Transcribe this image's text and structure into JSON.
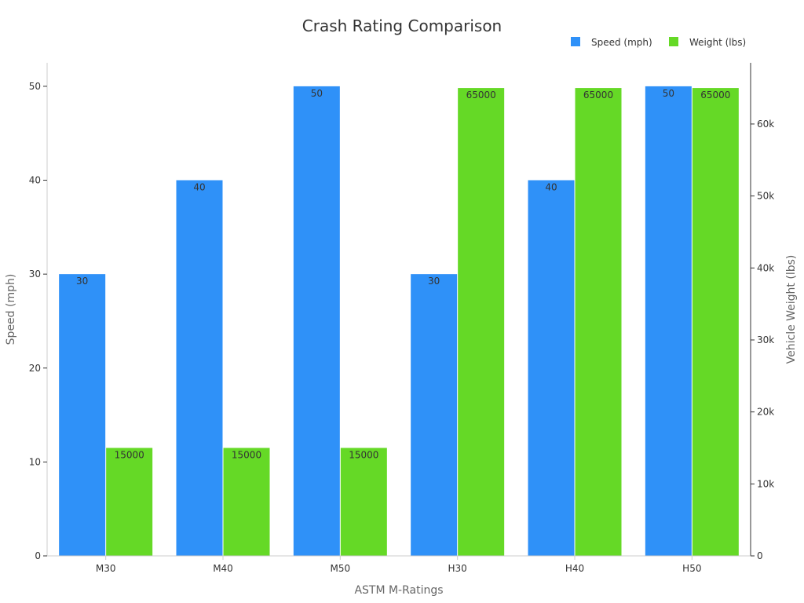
{
  "chart_data": {
    "type": "bar",
    "title": "Crash Rating Comparison",
    "xlabel": "ASTM M-Ratings",
    "ylabel": "Speed (mph)",
    "y2label": "Vehicle Weight (lbs)",
    "categories": [
      "M30",
      "M40",
      "M50",
      "H30",
      "H40",
      "H50"
    ],
    "series": [
      {
        "name": "Speed (mph)",
        "axis": "left",
        "color": "#2f91f8",
        "values": [
          30,
          40,
          50,
          30,
          40,
          50
        ]
      },
      {
        "name": "Weight (lbs)",
        "axis": "right",
        "color": "#65d926",
        "values": [
          15000,
          15000,
          15000,
          65000,
          65000,
          65000
        ]
      }
    ],
    "ylim": [
      0,
      52.5
    ],
    "y2lim": [
      0,
      68500
    ],
    "yticks": [
      0,
      10,
      20,
      30,
      40,
      50
    ],
    "y2ticks": [
      0,
      10000,
      20000,
      30000,
      40000,
      50000,
      60000
    ],
    "y2ticklabels": [
      "0",
      "10k",
      "20k",
      "30k",
      "40k",
      "50k",
      "60k"
    ],
    "grid": false,
    "legend": "top-right"
  }
}
